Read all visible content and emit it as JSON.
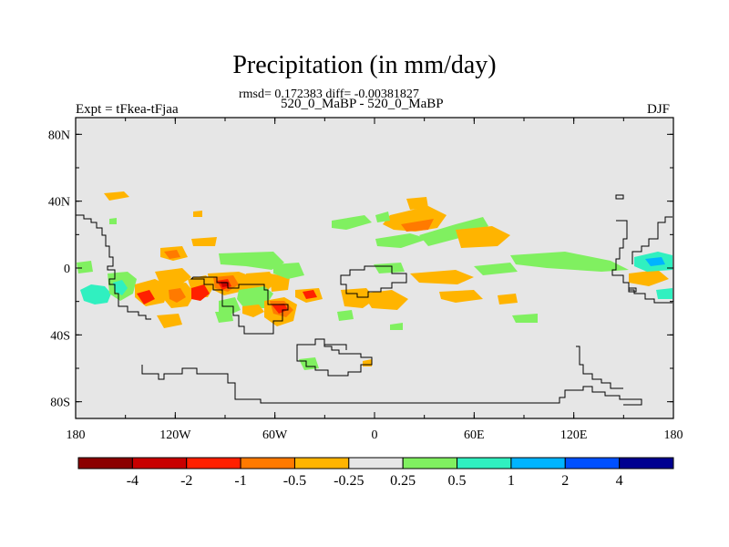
{
  "figure": {
    "title": "Precipitation (in mm/day)",
    "stats": "rmsd= 0.172383 diff= -0.00381827",
    "case": "520_0_MaBP - 520_0_MaBP",
    "expt": "Expt = tFkea-tFjaa",
    "season": "DJF"
  },
  "map": {
    "lon_ticks": [
      "180",
      "120W",
      "60W",
      "0",
      "60E",
      "120E",
      "180"
    ],
    "lat_ticks": [
      "80N",
      "40N",
      "0",
      "40S",
      "80S"
    ],
    "background_color": "#e6e6e6"
  },
  "colorbar": {
    "colors": [
      "#8b0000",
      "#c80000",
      "#ff2000",
      "#ff7a00",
      "#ffb400",
      "#e6e6e6",
      "#80f060",
      "#30f0c0",
      "#00b4ff",
      "#0050ff",
      "#000090"
    ],
    "labels": [
      "-4",
      "-2",
      "-1",
      "-0.5",
      "-0.25",
      "0.25",
      "0.5",
      "1",
      "2",
      "4"
    ]
  }
}
